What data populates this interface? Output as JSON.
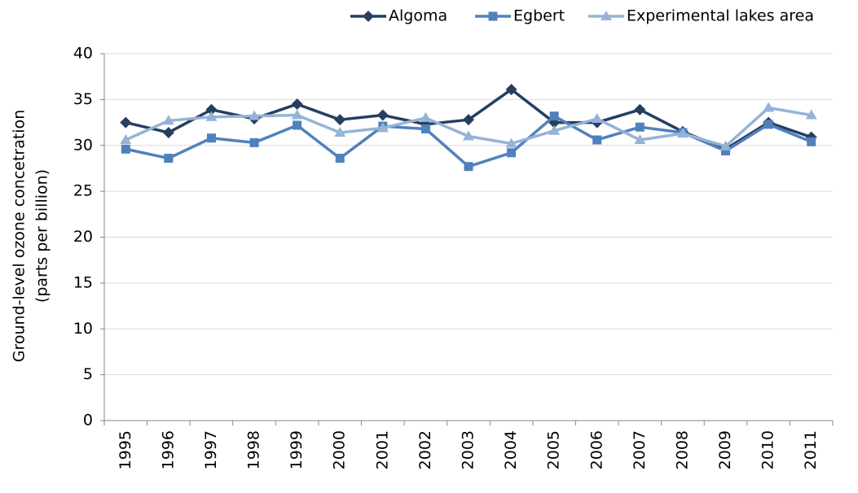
{
  "chart_data": {
    "type": "line",
    "y_label": [
      "Ground-level ozone concetration",
      "(parts per billion)"
    ],
    "categories": [
      "1995",
      "1996",
      "1997",
      "1998",
      "1999",
      "2000",
      "2001",
      "2002",
      "2003",
      "2004",
      "2005",
      "2006",
      "2007",
      "2008",
      "2009",
      "2010",
      "2011"
    ],
    "series": [
      {
        "name": "Algoma",
        "color": "#243f60",
        "marker": "diamond",
        "values": [
          32.5,
          31.4,
          33.9,
          32.9,
          34.5,
          32.8,
          33.3,
          32.3,
          32.8,
          36.1,
          32.5,
          32.5,
          33.9,
          31.5,
          29.6,
          32.5,
          30.9
        ]
      },
      {
        "name": "Egbert",
        "color": "#4f81bd",
        "marker": "square",
        "values": [
          29.6,
          28.6,
          30.8,
          30.3,
          32.2,
          28.6,
          32.1,
          31.8,
          27.7,
          29.2,
          33.2,
          30.6,
          32.0,
          31.4,
          29.4,
          32.3,
          30.4
        ]
      },
      {
        "name": "Experimental lakes area",
        "color": "#95b3d7",
        "marker": "triangle",
        "values": [
          30.6,
          32.7,
          33.1,
          33.2,
          33.3,
          31.4,
          31.9,
          33.0,
          31.0,
          30.2,
          31.6,
          32.9,
          30.6,
          31.3,
          29.9,
          34.1,
          33.3
        ]
      }
    ],
    "ylim": [
      0,
      40
    ],
    "yticks": [
      0,
      5,
      10,
      15,
      20,
      25,
      30,
      35,
      40
    ],
    "grid": true,
    "legend": "top-right"
  }
}
